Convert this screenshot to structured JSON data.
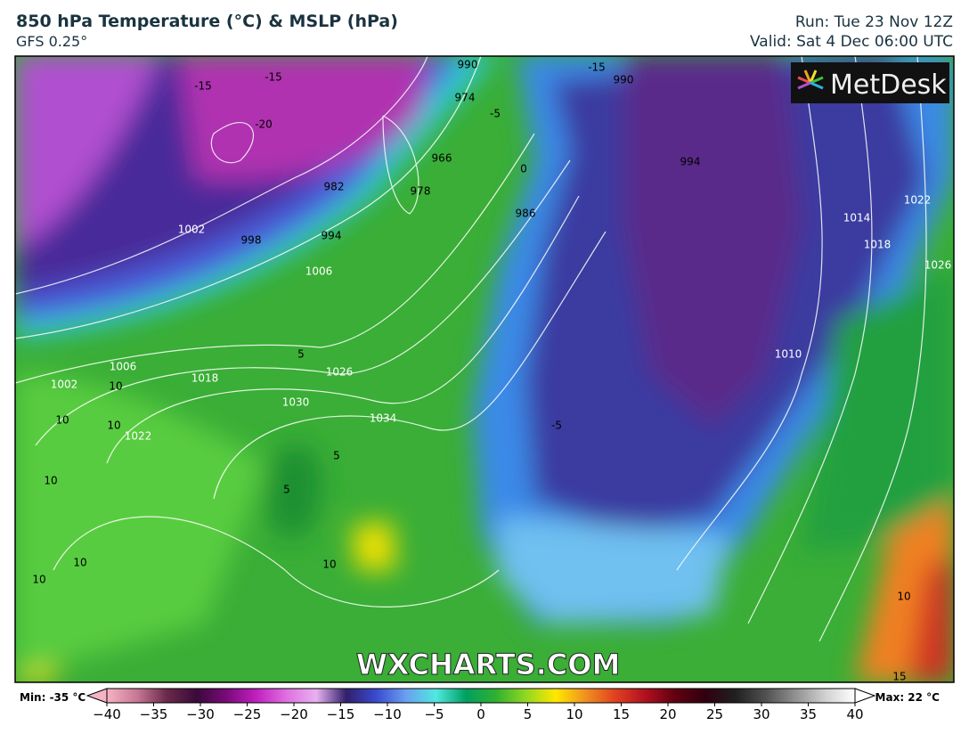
{
  "header": {
    "title": "850 hPa Temperature (°C) & MSLP (hPa)",
    "model": "GFS 0.25°",
    "run": "Run: Tue 23 Nov 12Z",
    "valid": "Valid: Sat 4 Dec 06:00 UTC"
  },
  "map": {
    "logo": "MetDesk",
    "watermark": "WXCHARTS.COM",
    "contour_labels": [
      "1002",
      "998",
      "994",
      "982",
      "1006",
      "1026",
      "1018",
      "1030",
      "1034",
      "1022",
      "1006",
      "1002",
      "986",
      "990",
      "974",
      "966",
      "978",
      "1014",
      "1018",
      "1022",
      "1026",
      "1010",
      "994",
      "990",
      "10",
      "10",
      "10",
      "10",
      "10",
      "10",
      "10",
      "10",
      "5",
      "5",
      "5",
      "-15",
      "-15",
      "-15",
      "-20",
      "-5",
      "-5",
      "0",
      "15"
    ]
  },
  "colorbar": {
    "min_label": "Min: -35 °C",
    "max_label": "Max: 22 °C",
    "range": [
      -40,
      40
    ],
    "ticks": [
      {
        "value": -40,
        "label": "−40"
      },
      {
        "value": -35,
        "label": "−35"
      },
      {
        "value": -30,
        "label": "−30"
      },
      {
        "value": -25,
        "label": "−25"
      },
      {
        "value": -20,
        "label": "−20"
      },
      {
        "value": -15,
        "label": "−15"
      },
      {
        "value": -10,
        "label": "−10"
      },
      {
        "value": -5,
        "label": "−5"
      },
      0,
      5,
      10,
      15,
      20,
      25,
      30,
      35,
      40
    ],
    "colors": [
      "#f6b3c4",
      "#c87896",
      "#6a2a4a",
      "#3a0a3a",
      "#7a0a7a",
      "#c020c0",
      "#e070e0",
      "#e8b0f0",
      "#30206a",
      "#3a4ad0",
      "#6aa0f0",
      "#50e8e0",
      "#00a060",
      "#30b030",
      "#90d820",
      "#ffe800",
      "#f09020",
      "#e04020",
      "#b01020",
      "#600010",
      "#300010",
      "#202020",
      "#505050",
      "#909090",
      "#d0d0d0",
      "#ffffff"
    ]
  }
}
